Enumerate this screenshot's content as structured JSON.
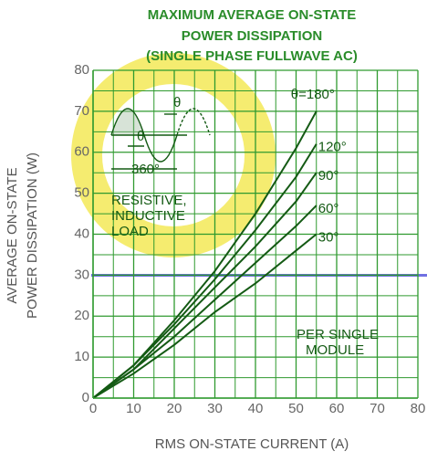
{
  "chart_data": {
    "type": "line",
    "title": [
      "MAXIMUM AVERAGE ON-STATE",
      "POWER DISSIPATION",
      "(SINGLE PHASE FULLWAVE AC)"
    ],
    "y_label": [
      "AVERAGE ON-STATE",
      "POWER DISSIPATION (W)"
    ],
    "x_label": "RMS ON-STATE CURRENT (A)",
    "x": [
      0,
      10,
      20,
      30,
      40,
      50,
      55
    ],
    "series": [
      {
        "name": "θ=180°",
        "color": "#145a14",
        "values": [
          0,
          8,
          19,
          31,
          45,
          61,
          70
        ]
      },
      {
        "name": "120°",
        "color": "#145a14",
        "values": [
          0,
          8,
          18,
          29,
          41,
          54,
          62
        ]
      },
      {
        "name": "90°",
        "color": "#145a14",
        "values": [
          0,
          7,
          17,
          27,
          37,
          48,
          55
        ]
      },
      {
        "name": "60°",
        "color": "#145a14",
        "values": [
          0,
          7,
          15,
          24,
          33,
          42,
          47
        ]
      },
      {
        "name": "30°",
        "color": "#145a14",
        "values": [
          0,
          6,
          13,
          21,
          28,
          36,
          40
        ]
      }
    ],
    "xlim": [
      0,
      80
    ],
    "xticks": [
      0,
      10,
      20,
      30,
      40,
      50,
      60,
      70,
      80
    ],
    "ylim": [
      0,
      80
    ],
    "yticks": [
      0,
      10,
      20,
      30,
      40,
      50,
      60,
      70,
      80
    ],
    "grid": true,
    "minor_grid": true,
    "annotations": {
      "load": [
        "RESISTIVE,",
        "INDUCTIVE",
        "LOAD"
      ],
      "module": [
        "PER SINGLE",
        "MODULE"
      ],
      "period": "360°",
      "angle": "θ",
      "angle2": "θ"
    }
  }
}
